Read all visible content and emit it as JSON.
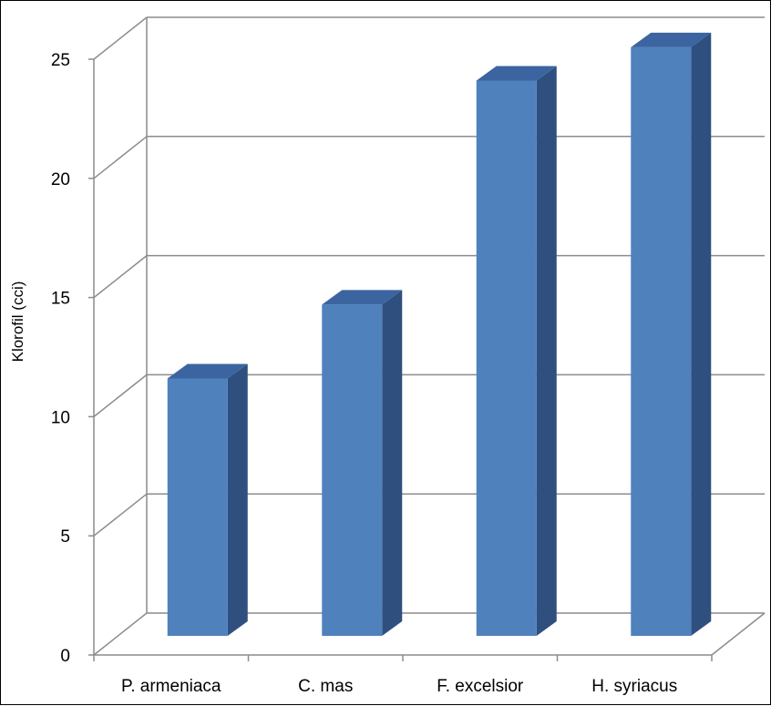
{
  "chart_data": {
    "type": "bar",
    "categories": [
      "P. armeniaca",
      "C. mas",
      "F.  excelsior",
      "H. syriacus"
    ],
    "values": [
      10.8,
      13.9,
      23.3,
      24.7
    ],
    "ylabel": "Klorofil (cci)",
    "xlabel": "",
    "ylim": [
      0,
      25
    ],
    "yticks": [
      0,
      5,
      10,
      15,
      20,
      25
    ],
    "ytick_labels": [
      "0",
      "5",
      "10",
      "15",
      "20",
      "25"
    ],
    "grid": true,
    "style": "3d-column",
    "colors": {
      "front": "#4f81bd",
      "side": "#2f4f7f",
      "top": "#3b64a0",
      "grid": "#8c8c8c"
    }
  }
}
